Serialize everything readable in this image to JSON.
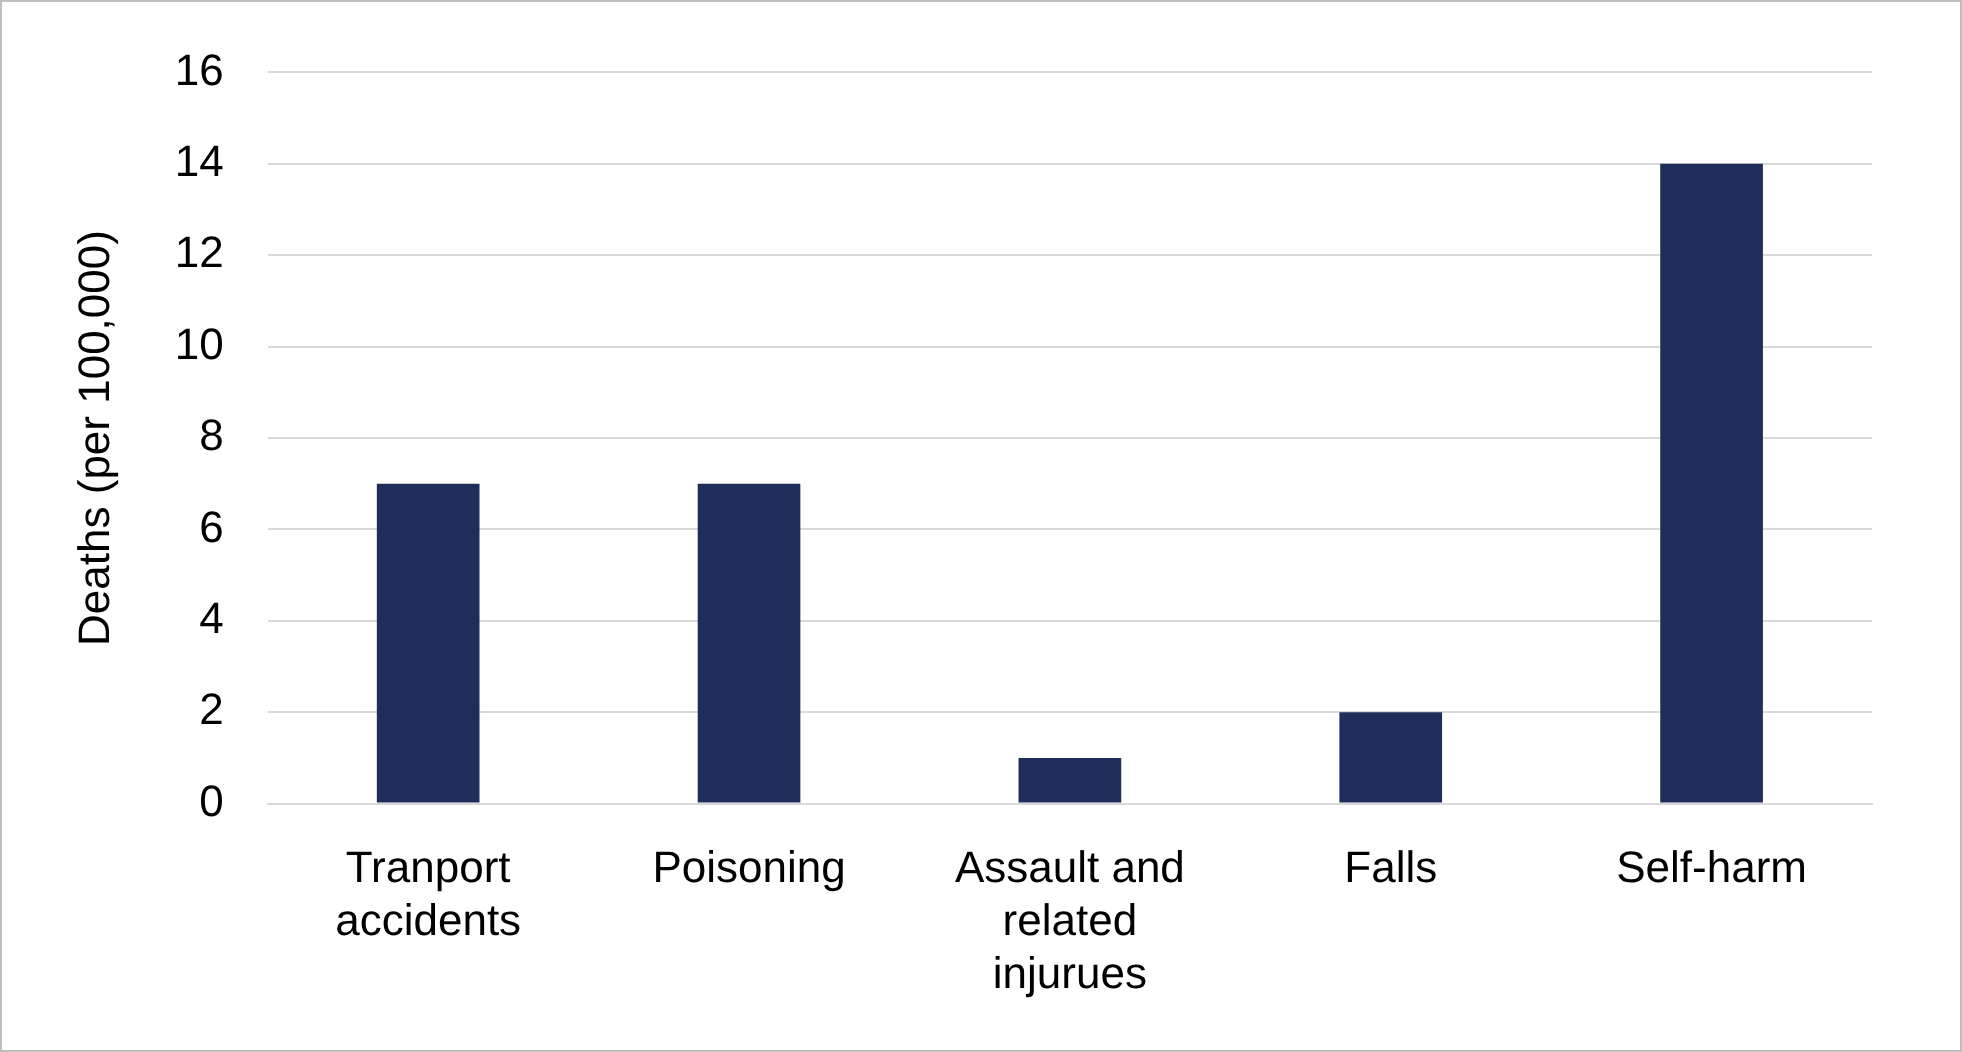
{
  "chart_data": {
    "type": "bar",
    "ylabel": "Deaths (per 100,000)",
    "categories": [
      "Tranport accidents",
      "Poisoning",
      "Assault and related injurues",
      "Falls",
      "Self-harm"
    ],
    "values": [
      7,
      7,
      1,
      2,
      14
    ],
    "color": "#1f2d5a",
    "ylim": [
      0,
      16
    ],
    "yticks": [
      0,
      2,
      4,
      6,
      8,
      10,
      12,
      14,
      16
    ],
    "grid": "y",
    "legend": false
  }
}
